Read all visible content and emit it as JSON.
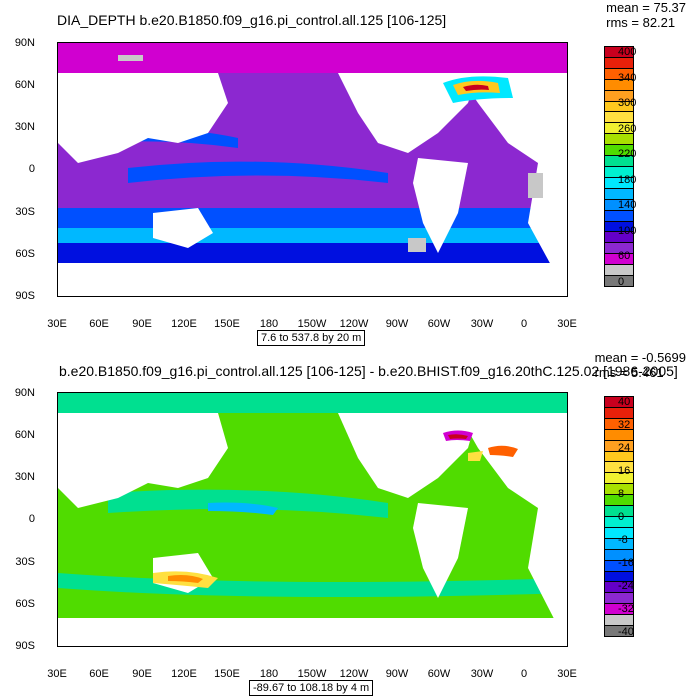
{
  "top": {
    "title": "DIA_DEPTH b.e20.B1850.f09_g16.pi_control.all.125 [106-125]",
    "mean": "mean = 75.37",
    "rms": "rms = 82.21",
    "range": "7.6 to 537.8 by 20 m",
    "colorbar": {
      "labels": [
        "400",
        "340",
        "300",
        "260",
        "220",
        "180",
        "140",
        "100",
        "60",
        "0"
      ],
      "colors": [
        "#c8001e",
        "#e8200a",
        "#ff6000",
        "#ff8c00",
        "#ffa020",
        "#ffc81e",
        "#ffe040",
        "#f0f030",
        "#a8e000",
        "#50dc00",
        "#00e090",
        "#00f0d0",
        "#00e8ff",
        "#00b8ff",
        "#0090ff",
        "#0050ff",
        "#0010e0",
        "#6400c8",
        "#8c28d0",
        "#d000d0",
        "#c8c8c8",
        "#787878"
      ]
    }
  },
  "bottom": {
    "title": "b.e20.B1850.f09_g16.pi_control.all.125 [106-125] - b.e20.BHIST.f09_g16.20thC.125.02 [1986-2005]",
    "mean": "mean = -0.5699",
    "rms": "rms = 5.461",
    "range": "-89.67 to 108.18 by 4 m",
    "colorbar": {
      "labels": [
        "40",
        "32",
        "24",
        "16",
        "8",
        "0",
        "-8",
        "-16",
        "-24",
        "-32",
        "-40"
      ],
      "colors": [
        "#c8001e",
        "#e8200a",
        "#ff6000",
        "#ff8c00",
        "#ffa020",
        "#ffc81e",
        "#ffe040",
        "#f0f030",
        "#a8e000",
        "#50dc00",
        "#00e090",
        "#00f0d0",
        "#00e8ff",
        "#00b8ff",
        "#0090ff",
        "#0050ff",
        "#0010e0",
        "#6400c8",
        "#8c28d0",
        "#d000d0",
        "#c8c8c8",
        "#787878"
      ]
    }
  },
  "axes": {
    "lat_labels": [
      "90N",
      "60N",
      "30N",
      "0",
      "30S",
      "60S",
      "90S"
    ],
    "lon_labels": [
      "30E",
      "60E",
      "90E",
      "120E",
      "150E",
      "180",
      "150W",
      "120W",
      "90W",
      "60W",
      "30W",
      "0",
      "30E"
    ]
  },
  "colors": {
    "land": "#ffffff",
    "missing": "#c8c8c8"
  }
}
